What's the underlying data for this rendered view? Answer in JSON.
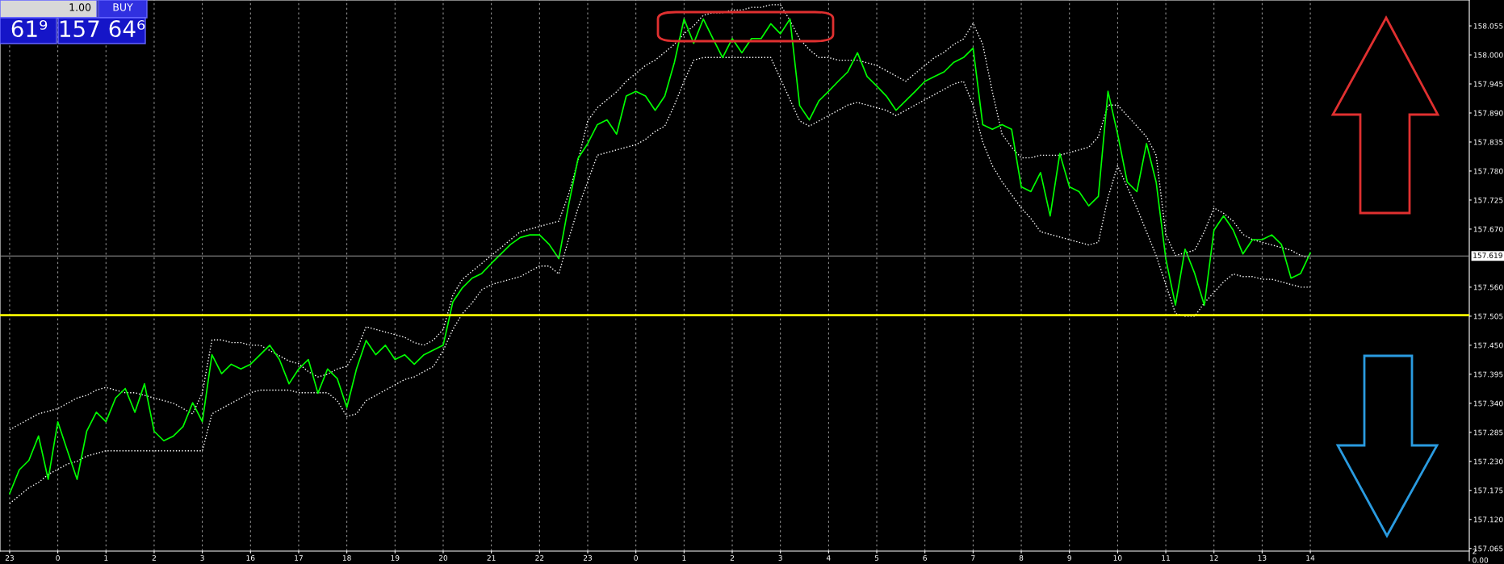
{
  "chart_data": [
    {
      "type": "line",
      "categories": [
        "23",
        null,
        null,
        null,
        null,
        "0",
        null,
        null,
        null,
        null,
        "1",
        null,
        null,
        null,
        null,
        "2",
        null,
        null,
        null,
        null,
        "3",
        null,
        null,
        null,
        null,
        "16",
        null,
        null,
        null,
        null,
        "17",
        null,
        null,
        null,
        null,
        "18",
        null,
        null,
        null,
        null,
        "19",
        null,
        null,
        null,
        null,
        "20",
        null,
        null,
        null,
        null,
        "21",
        null,
        null,
        null,
        null,
        "22",
        null,
        null,
        null,
        null,
        "23",
        null,
        null,
        null,
        null,
        "0",
        null,
        null,
        null,
        null,
        "1",
        null,
        null,
        null,
        null,
        "2",
        null,
        null,
        null,
        null,
        "3",
        null,
        null,
        null,
        null,
        "4",
        null,
        null,
        null,
        null,
        "5",
        null,
        null,
        null,
        null,
        "6",
        null,
        null,
        null,
        null,
        "7",
        null,
        null,
        null,
        null,
        "8",
        null,
        null,
        null,
        null,
        "9",
        null,
        null,
        null,
        null,
        "10",
        null,
        null,
        null,
        null,
        "11",
        null,
        null,
        null,
        null,
        "12",
        null,
        null,
        null,
        null,
        "13",
        null,
        null,
        null,
        null,
        "14",
        null,
        null,
        null,
        null,
        null,
        null,
        null,
        null,
        null,
        null,
        null,
        null,
        null,
        null,
        null,
        null
      ],
      "ylim": [
        157.06,
        158.104
      ],
      "yticks": [
        {
          "value": 158.055,
          "label": "158.055"
        },
        {
          "value": 158.0,
          "label": "158.000"
        },
        {
          "value": 157.945,
          "label": "157.945"
        },
        {
          "value": 157.89,
          "label": "157.890"
        },
        {
          "value": 157.835,
          "label": "157.835"
        },
        {
          "value": 157.78,
          "label": "157.780"
        },
        {
          "value": 157.725,
          "label": "157.725"
        },
        {
          "value": 157.67,
          "label": "157.670"
        },
        {
          "value": 157.56,
          "label": "157.560"
        },
        {
          "value": 157.505,
          "label": "157.505"
        },
        {
          "value": 157.45,
          "label": "157.450"
        },
        {
          "value": 157.395,
          "label": "157.395"
        },
        {
          "value": 157.34,
          "label": "157.340"
        },
        {
          "value": 157.285,
          "label": "157.285"
        },
        {
          "value": 157.23,
          "label": "157.230"
        },
        {
          "value": 157.175,
          "label": "157.175"
        },
        {
          "value": 157.12,
          "label": "157.120"
        },
        {
          "value": 157.065,
          "label": "157.065"
        }
      ],
      "grid": "x",
      "series": [
        {
          "color": "#00ff00",
          "line_style": "solid",
          "values": [
            157.169,
            157.214,
            157.232,
            157.278,
            157.196,
            157.305,
            157.25,
            157.196,
            157.287,
            157.323,
            157.305,
            157.35,
            157.368,
            157.323,
            157.377,
            157.287,
            157.269,
            157.278,
            157.296,
            157.341,
            157.305,
            157.432,
            157.396,
            157.414,
            157.405,
            157.414,
            157.432,
            157.45,
            157.423,
            157.377,
            157.405,
            157.423,
            157.359,
            157.405,
            157.387,
            157.332,
            157.405,
            157.459,
            157.432,
            157.45,
            157.423,
            157.432,
            157.414,
            157.432,
            157.441,
            157.45,
            157.532,
            157.559,
            157.577,
            157.586,
            157.605,
            157.623,
            157.641,
            157.654,
            157.659,
            157.659,
            157.641,
            157.614,
            157.714,
            157.804,
            157.832,
            157.868,
            157.877,
            157.85,
            157.922,
            157.931,
            157.922,
            157.895,
            157.922,
            157.986,
            158.068,
            158.022,
            158.068,
            158.031,
            157.995,
            158.031,
            158.004,
            158.031,
            158.031,
            158.059,
            158.04,
            158.068,
            157.904,
            157.877,
            157.913,
            157.931,
            157.95,
            157.968,
            158.004,
            157.959,
            157.941,
            157.922,
            157.895,
            157.913,
            157.931,
            157.95,
            157.959,
            157.968,
            157.986,
            157.995,
            158.013,
            157.868,
            157.859,
            157.868,
            157.859,
            157.75,
            157.741,
            157.777,
            157.695,
            157.813,
            157.75,
            157.741,
            157.714,
            157.732,
            157.931,
            157.85,
            157.759,
            157.741,
            157.832,
            157.759,
            157.614,
            157.526,
            157.632,
            157.586,
            157.526,
            157.668,
            157.695,
            157.668,
            157.623,
            157.65,
            157.65,
            157.659,
            157.641,
            157.577,
            157.586,
            157.625,
            null,
            null,
            null,
            null,
            null,
            null,
            null,
            null,
            null,
            null,
            null,
            null,
            null,
            null,
            null,
            null
          ]
        },
        {
          "color": "#ffffff",
          "line_style": "dotted",
          "values": [
            157.29,
            157.3,
            157.31,
            157.32,
            157.325,
            157.33,
            157.34,
            157.35,
            157.355,
            157.365,
            157.37,
            157.365,
            157.36,
            157.36,
            157.355,
            157.35,
            157.345,
            157.34,
            157.33,
            157.32,
            157.36,
            157.46,
            157.46,
            157.455,
            157.455,
            157.45,
            157.45,
            157.44,
            157.43,
            157.42,
            157.415,
            157.4,
            157.39,
            157.395,
            157.405,
            157.41,
            157.44,
            157.485,
            157.48,
            157.475,
            157.47,
            157.465,
            157.455,
            157.45,
            157.46,
            157.48,
            157.545,
            157.575,
            157.59,
            157.605,
            157.62,
            157.635,
            157.65,
            157.665,
            157.67,
            157.675,
            157.68,
            157.685,
            157.735,
            157.8,
            157.875,
            157.9,
            157.915,
            157.93,
            157.95,
            157.965,
            157.98,
            157.99,
            158.005,
            158.02,
            158.04,
            158.055,
            158.075,
            158.08,
            158.08,
            158.085,
            158.085,
            158.09,
            158.09,
            158.095,
            158.095,
            158.065,
            158.03,
            158.01,
            157.995,
            157.995,
            157.99,
            157.99,
            157.99,
            157.985,
            157.98,
            157.97,
            157.96,
            157.95,
            157.965,
            157.98,
            157.995,
            158.005,
            158.02,
            158.03,
            158.06,
            158.02,
            157.93,
            157.85,
            157.825,
            157.805,
            157.805,
            157.81,
            157.81,
            157.81,
            157.815,
            157.82,
            157.825,
            157.845,
            157.905,
            157.905,
            157.885,
            157.865,
            157.845,
            157.81,
            157.66,
            157.62,
            157.625,
            157.63,
            157.665,
            157.71,
            157.7,
            157.685,
            157.66,
            157.65,
            157.645,
            157.64,
            157.635,
            157.63,
            157.62,
            157.615,
            null,
            null,
            null,
            null,
            null,
            null,
            null,
            null,
            null,
            null,
            null,
            null,
            null,
            null,
            null,
            null
          ]
        },
        {
          "color": "#ffffff",
          "line_style": "dotted",
          "values": [
            157.15,
            157.165,
            157.18,
            157.19,
            157.205,
            157.215,
            157.225,
            157.23,
            157.24,
            157.245,
            157.25,
            157.25,
            157.25,
            157.25,
            157.25,
            157.25,
            157.25,
            157.25,
            157.25,
            157.25,
            157.25,
            157.32,
            157.33,
            157.34,
            157.35,
            157.36,
            157.365,
            157.365,
            157.365,
            157.365,
            157.36,
            157.36,
            157.36,
            157.36,
            157.345,
            157.315,
            157.32,
            157.345,
            157.355,
            157.365,
            157.375,
            157.385,
            157.39,
            157.4,
            157.41,
            157.44,
            157.48,
            157.51,
            157.53,
            157.555,
            157.565,
            157.57,
            157.575,
            157.58,
            157.59,
            157.6,
            157.6,
            157.585,
            157.65,
            157.71,
            157.76,
            157.81,
            157.815,
            157.82,
            157.825,
            157.83,
            157.84,
            157.855,
            157.865,
            157.905,
            157.95,
            157.99,
            157.995,
            157.995,
            157.995,
            157.995,
            157.995,
            157.995,
            157.995,
            157.995,
            157.955,
            157.915,
            157.875,
            157.865,
            157.875,
            157.885,
            157.895,
            157.905,
            157.91,
            157.905,
            157.9,
            157.895,
            157.885,
            157.895,
            157.905,
            157.915,
            157.925,
            157.935,
            157.945,
            157.95,
            157.905,
            157.835,
            157.79,
            157.76,
            157.735,
            157.71,
            157.69,
            157.665,
            157.66,
            157.655,
            157.65,
            157.645,
            157.64,
            157.645,
            157.73,
            157.79,
            157.75,
            157.71,
            157.665,
            157.62,
            157.565,
            157.51,
            157.505,
            157.505,
            157.53,
            157.55,
            157.57,
            157.585,
            157.58,
            157.58,
            157.575,
            157.575,
            157.57,
            157.565,
            157.56,
            157.56,
            null,
            null,
            null,
            null,
            null,
            null,
            null,
            null,
            null,
            null,
            null,
            null,
            null,
            null,
            null,
            null
          ]
        }
      ],
      "ref_lines": [
        {
          "axis": "y",
          "value": 157.507,
          "color": "#ffff00",
          "line_style": "solid"
        },
        {
          "axis": "y",
          "value": 157.619,
          "label": "157.619",
          "color": "#9a9a9a",
          "line_style": "solid"
        }
      ],
      "annotations": [
        "1.00",
        "BUY",
        "61⁹",
        "157 64⁶"
      ]
    },
    {
      "type": "other",
      "annotations": [
        "2",
        "0.00"
      ]
    }
  ]
}
